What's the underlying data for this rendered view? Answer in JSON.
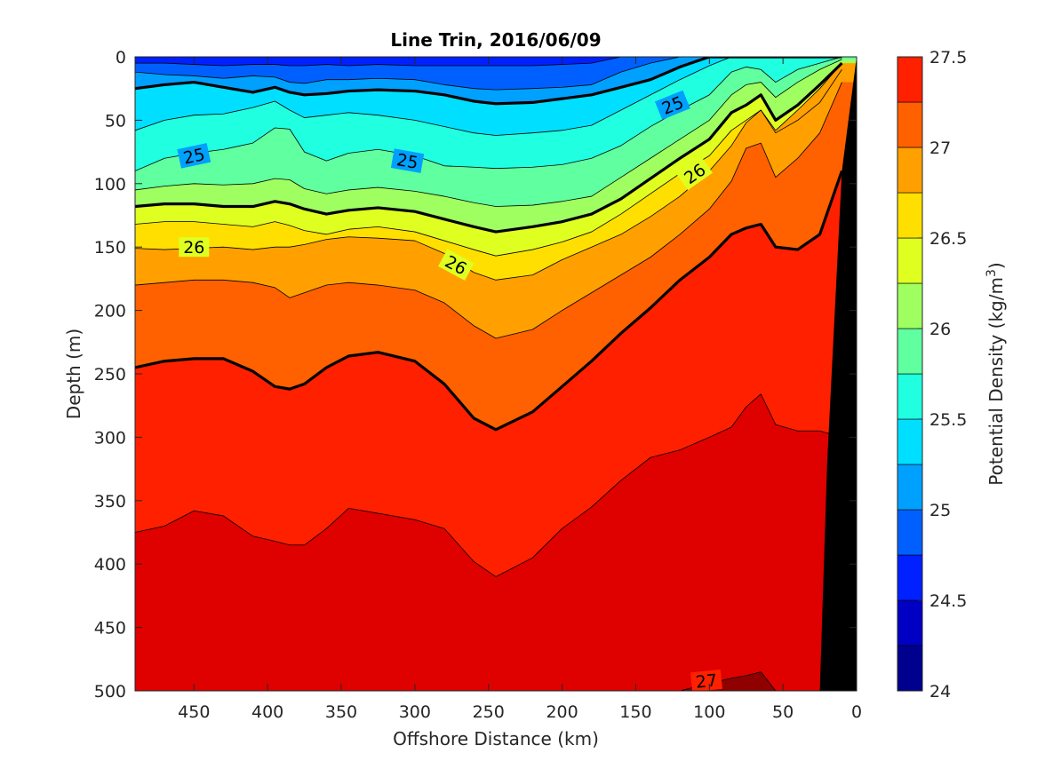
{
  "chart_data": {
    "type": "contour",
    "title": "Line Trin, 2016/06/09",
    "xlabel": "Offshore Distance (km)",
    "ylabel": "Depth (m)",
    "colorbar_label": "Potential Density (kg/m",
    "colorbar_label_sup": "3",
    "colorbar_label_end": ")",
    "xlim": [
      490,
      0
    ],
    "ylim": [
      0,
      500
    ],
    "x_reversed": true,
    "y_reversed": true,
    "x_ticks": [
      "450",
      "400",
      "350",
      "300",
      "250",
      "200",
      "150",
      "100",
      "50",
      "0"
    ],
    "x_tick_values": [
      450,
      400,
      350,
      300,
      250,
      200,
      150,
      100,
      50,
      0
    ],
    "y_ticks": [
      "0",
      "50",
      "100",
      "150",
      "200",
      "250",
      "300",
      "350",
      "400",
      "450",
      "500"
    ],
    "y_tick_values": [
      0,
      50,
      100,
      150,
      200,
      250,
      300,
      350,
      400,
      450,
      500
    ],
    "colorbar_ticks": [
      "24",
      "24.5",
      "25",
      "25.5",
      "26",
      "26.5",
      "27",
      "27.5"
    ],
    "colorbar_tick_values": [
      24,
      24.5,
      25,
      25.5,
      26,
      26.5,
      27,
      27.5
    ],
    "clim": [
      24,
      27.5
    ],
    "levels": [
      24,
      24.25,
      24.5,
      24.75,
      25,
      25.25,
      25.5,
      25.75,
      26,
      26.25,
      26.5,
      26.75,
      27,
      27.25,
      27.5
    ],
    "colors": [
      "#00008f",
      "#0000c4",
      "#0020ff",
      "#0060ff",
      "#00a0ff",
      "#00dfff",
      "#20ffdf",
      "#60ff9f",
      "#9fff60",
      "#dfff20",
      "#ffdf00",
      "#ffa000",
      "#ff6000",
      "#ff2000",
      "#df0000",
      "#8f0000"
    ],
    "labeled_contours": [
      "25",
      "25",
      "25",
      "26",
      "26",
      "26",
      "27"
    ],
    "isopycnal_depths": {
      "x_km": [
        490,
        470,
        450,
        430,
        410,
        395,
        385,
        375,
        360,
        345,
        325,
        300,
        280,
        260,
        245,
        220,
        200,
        180,
        160,
        140,
        120,
        100,
        85,
        75,
        65,
        55,
        40,
        25,
        10
      ],
      "d24_25": [
        0,
        0,
        0,
        0,
        0,
        0,
        0,
        0,
        0,
        0,
        0,
        0,
        0,
        0,
        0,
        0,
        0,
        0,
        0,
        0,
        0,
        0,
        0,
        0,
        0,
        0,
        0,
        0,
        0
      ],
      "d24_5": [
        5,
        5,
        6,
        7,
        6,
        6,
        7,
        7,
        6,
        7,
        6,
        7,
        7,
        7,
        7,
        7,
        6,
        5,
        0,
        0,
        0,
        0,
        0,
        0,
        0,
        0,
        0,
        0,
        0
      ],
      "d24_75": [
        12,
        14,
        15,
        17,
        15,
        16,
        20,
        21,
        18,
        18,
        17,
        18,
        22,
        25,
        26,
        25,
        24,
        22,
        12,
        5,
        0,
        0,
        0,
        0,
        0,
        0,
        0,
        0,
        0
      ],
      "d25": [
        25,
        22,
        20,
        24,
        28,
        24,
        28,
        30,
        29,
        27,
        26,
        27,
        30,
        35,
        37,
        36,
        33,
        30,
        24,
        18,
        8,
        0,
        0,
        0,
        0,
        0,
        0,
        0,
        0
      ],
      "d25_25": [
        58,
        50,
        46,
        45,
        40,
        35,
        42,
        48,
        46,
        44,
        46,
        50,
        55,
        60,
        62,
        60,
        58,
        54,
        42,
        30,
        18,
        7,
        0,
        0,
        0,
        0,
        0,
        0,
        0
      ],
      "d25_5": [
        90,
        80,
        76,
        73,
        68,
        56,
        57,
        75,
        82,
        76,
        73,
        78,
        86,
        87,
        88,
        87,
        85,
        80,
        70,
        55,
        42,
        30,
        12,
        8,
        10,
        20,
        10,
        5,
        0
      ],
      "d25_75": [
        105,
        102,
        100,
        101,
        100,
        96,
        97,
        104,
        108,
        105,
        103,
        106,
        110,
        115,
        118,
        117,
        114,
        110,
        95,
        80,
        65,
        50,
        30,
        22,
        20,
        32,
        20,
        10,
        2
      ],
      "d26": [
        118,
        116,
        116,
        118,
        118,
        114,
        116,
        120,
        124,
        121,
        119,
        122,
        128,
        134,
        138,
        134,
        130,
        124,
        112,
        96,
        80,
        65,
        44,
        38,
        30,
        50,
        38,
        22,
        5
      ],
      "d26_25": [
        132,
        130,
        130,
        132,
        134,
        130,
        133,
        137,
        140,
        136,
        134,
        138,
        145,
        152,
        157,
        152,
        146,
        138,
        124,
        108,
        92,
        78,
        58,
        50,
        42,
        60,
        50,
        36,
        10
      ],
      "d26_5": [
        151,
        152,
        151,
        150,
        152,
        150,
        150,
        148,
        144,
        142,
        143,
        145,
        155,
        170,
        176,
        172,
        160,
        150,
        140,
        126,
        110,
        90,
        70,
        52,
        42,
        58,
        42,
        25,
        5
      ],
      "d26_75": [
        180,
        178,
        176,
        176,
        178,
        182,
        190,
        186,
        180,
        178,
        180,
        184,
        194,
        212,
        222,
        215,
        200,
        186,
        172,
        158,
        140,
        120,
        98,
        72,
        68,
        95,
        80,
        60,
        20
      ],
      "d27": [
        245,
        240,
        238,
        238,
        248,
        260,
        262,
        258,
        245,
        236,
        233,
        240,
        258,
        285,
        294,
        280,
        260,
        240,
        218,
        198,
        176,
        158,
        140,
        135,
        132,
        150,
        152,
        140,
        90
      ],
      "d27_25": [
        375,
        370,
        358,
        362,
        378,
        382,
        385,
        385,
        372,
        356,
        360,
        365,
        372,
        398,
        410,
        395,
        372,
        355,
        334,
        316,
        310,
        300,
        292,
        276,
        266,
        290,
        295,
        295,
        300
      ],
      "d27_5": [
        500,
        500,
        500,
        500,
        500,
        500,
        500,
        500,
        500,
        500,
        500,
        500,
        500,
        500,
        500,
        500,
        500,
        500,
        500,
        500,
        500,
        494,
        490,
        488,
        485,
        500,
        500,
        500,
        500
      ]
    },
    "bottom_topography": {
      "x_km": [
        25,
        20,
        10,
        0
      ],
      "depth": [
        500,
        320,
        90,
        0
      ]
    }
  }
}
